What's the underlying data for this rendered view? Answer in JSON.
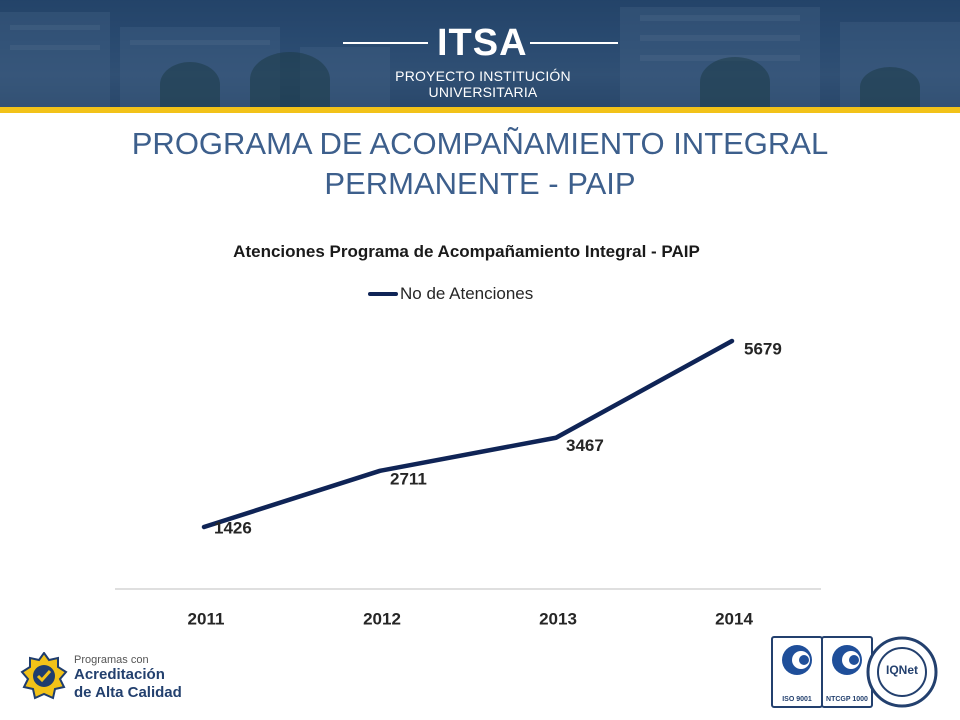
{
  "header": {
    "logo_text": "ITSA",
    "logo_subtitle": "PROYECTO INSTITUCIÓN UNIVERSITARIA",
    "accent_color": "#f2c218",
    "band_color": "#2e4f73"
  },
  "page_title_line1": "PROGRAMA DE ACOMPAÑAMIENTO INTEGRAL",
  "page_title_line2": "PERMANENTE - PAIP",
  "chart_data": {
    "type": "line",
    "title": "Atenciones Programa de Acompañamiento Integral - PAIP",
    "categories": [
      "2011",
      "2012",
      "2013",
      "2014"
    ],
    "series": [
      {
        "name": "No de Atenciones",
        "values": [
          1426,
          2711,
          3467,
          5679
        ],
        "color": "#0f2456"
      }
    ],
    "data_labels": true,
    "legend_position": "top",
    "grid": false,
    "xlabel": "",
    "ylabel": ""
  },
  "footer": {
    "badge_line1": "Programas con",
    "badge_line2": "Acreditación",
    "badge_line3": "de Alta Calidad",
    "cert1_caption": "ISO 9001",
    "cert2_caption": "NTCGP 1000",
    "cert3_label": "IQNet"
  }
}
